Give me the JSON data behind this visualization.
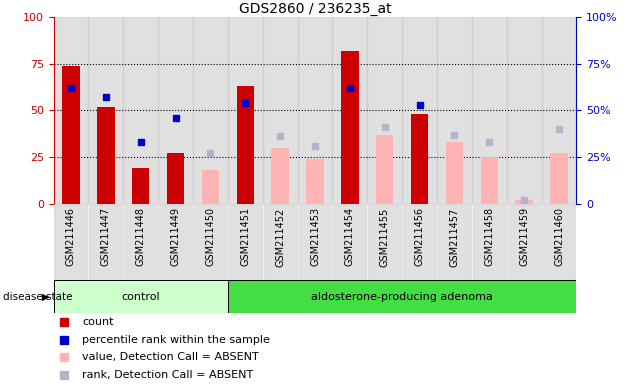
{
  "title": "GDS2860 / 236235_at",
  "samples": [
    "GSM211446",
    "GSM211447",
    "GSM211448",
    "GSM211449",
    "GSM211450",
    "GSM211451",
    "GSM211452",
    "GSM211453",
    "GSM211454",
    "GSM211455",
    "GSM211456",
    "GSM211457",
    "GSM211458",
    "GSM211459",
    "GSM211460"
  ],
  "count_red": [
    74,
    52,
    19,
    27,
    0,
    63,
    0,
    0,
    82,
    0,
    48,
    0,
    0,
    0,
    0
  ],
  "percentile_blue": [
    62,
    57,
    33,
    46,
    0,
    54,
    0,
    0,
    62,
    0,
    53,
    0,
    0,
    0,
    0
  ],
  "value_pink": [
    0,
    0,
    0,
    0,
    18,
    0,
    30,
    24,
    0,
    37,
    0,
    33,
    25,
    2,
    27
  ],
  "rank_lavender": [
    0,
    0,
    0,
    0,
    27,
    0,
    36,
    31,
    0,
    41,
    0,
    37,
    33,
    2,
    40
  ],
  "control_count": 5,
  "adenoma_label": "aldosterone-producing adenoma",
  "control_label": "control",
  "disease_state_label": "disease state",
  "yticks": [
    0,
    25,
    50,
    75,
    100
  ],
  "color_red": "#cc0000",
  "color_blue": "#0000cc",
  "color_pink": "#ffb3b3",
  "color_lavender": "#b3b3cc",
  "color_control_bg": "#ccffcc",
  "color_adenoma_bg": "#44dd44",
  "color_gray": "#cccccc",
  "bar_width": 0.5,
  "legend_labels": [
    "count",
    "percentile rank within the sample",
    "value, Detection Call = ABSENT",
    "rank, Detection Call = ABSENT"
  ]
}
